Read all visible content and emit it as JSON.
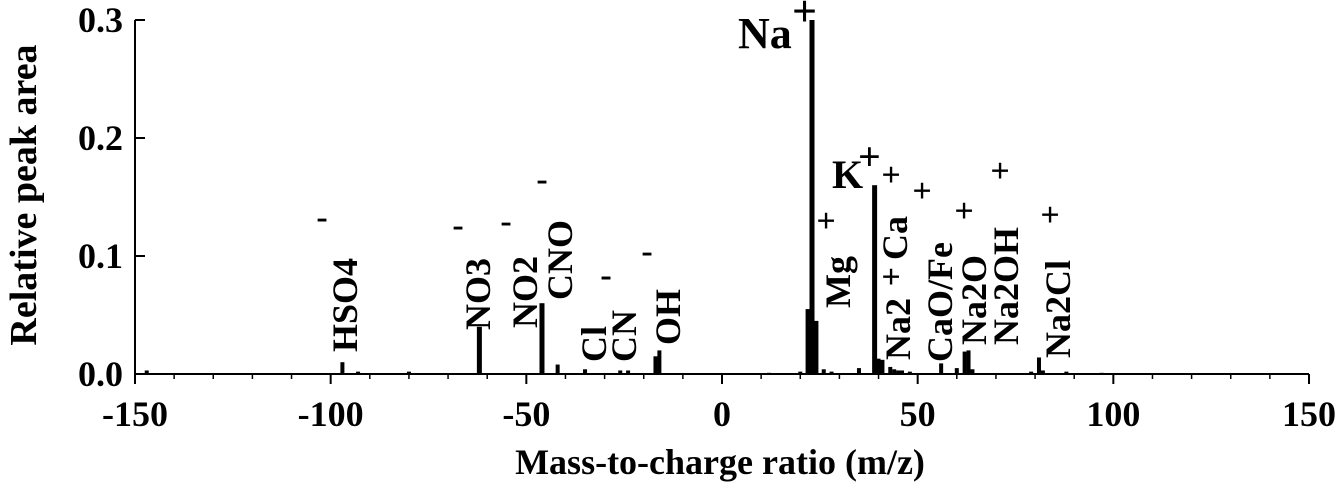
{
  "chart_data": {
    "type": "bar",
    "title": "",
    "xlabel": "Mass-to-charge ratio (m/z)",
    "ylabel": "Relative peak area",
    "xlim": [
      -150,
      150
    ],
    "ylim": [
      0,
      0.3
    ],
    "xticks": [
      -150,
      -100,
      -50,
      0,
      50,
      100,
      150
    ],
    "xtick_labels": [
      "-150",
      "-100",
      "-50",
      "0",
      "50",
      "100",
      "150"
    ],
    "yticks": [
      0,
      0.1,
      0.2,
      0.3
    ],
    "ytick_labels": [
      "0.0",
      "0.1",
      "0.2",
      "0.3"
    ],
    "grid": false,
    "bar_color": "#000000",
    "series": [
      {
        "x": [
          -147,
          -97,
          -93,
          -80,
          -62,
          -46,
          -42,
          -35,
          -26,
          -24,
          -17,
          -16,
          12,
          20,
          22,
          23,
          24,
          26,
          28,
          35,
          39,
          40,
          41,
          43,
          44,
          45,
          46,
          48,
          56,
          60,
          62,
          63,
          64,
          79,
          81,
          82,
          88,
          97
        ],
        "y": [
          0.003,
          0.01,
          0.002,
          0.002,
          0.04,
          0.06,
          0.008,
          0.004,
          0.003,
          0.003,
          0.015,
          0.02,
          0.001,
          0.002,
          0.055,
          0.3,
          0.045,
          0.004,
          0.002,
          0.005,
          0.16,
          0.013,
          0.012,
          0.006,
          0.004,
          0.003,
          0.003,
          0.002,
          0.009,
          0.005,
          0.019,
          0.02,
          0.004,
          0.002,
          0.014,
          0.003,
          0.002,
          0.001
        ]
      }
    ],
    "annotations": [
      {
        "text": "Na",
        "sup": "+",
        "x": 23,
        "rotated": false
      },
      {
        "text": "K",
        "sup": "+",
        "x": 39,
        "rotated": false
      },
      {
        "text": "HSO4",
        "sup": "-",
        "x": -97,
        "rotated": true
      },
      {
        "text": "NO3",
        "sup": "-",
        "x": -62,
        "rotated": true
      },
      {
        "text": "NO2",
        "sup": "-",
        "x": -46,
        "rotated": true
      },
      {
        "text": "CNO",
        "sup": "-",
        "x": -42,
        "rotated": true
      },
      {
        "text": "Cl",
        "sup": "-",
        "x": -35,
        "rotated": true
      },
      {
        "text": "CN",
        "sup": "-",
        "x": -26,
        "rotated": true
      },
      {
        "text": "OH",
        "sup": "-",
        "x": -17,
        "rotated": true
      },
      {
        "text": "Mg",
        "sup": "+",
        "x": 24,
        "rotated": true
      },
      {
        "text": "Ca",
        "sup": "+",
        "x": 40,
        "rotated": true
      },
      {
        "text": "Na2",
        "sup": "+",
        "x": 46,
        "rotated": true
      },
      {
        "text": "CaO/Fe",
        "sup": "+",
        "x": 56,
        "rotated": true
      },
      {
        "text": "Na2O",
        "sup": "+",
        "x": 62,
        "rotated": true
      },
      {
        "text": "Na2OH",
        "sup": "+",
        "x": 79,
        "rotated": true
      },
      {
        "text": "Na2Cl",
        "sup": "+",
        "x": 81,
        "rotated": true
      }
    ]
  }
}
